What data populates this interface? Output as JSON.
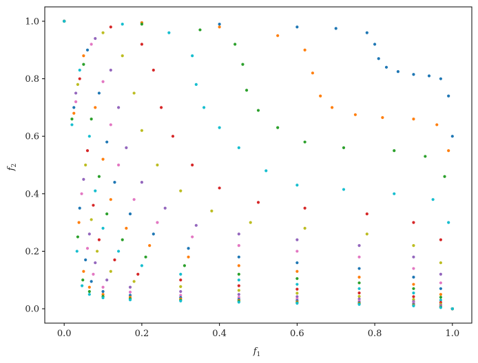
{
  "chart_data": {
    "type": "scatter",
    "title": "",
    "xlabel": "f",
    "xlabel_sub": "1",
    "ylabel": "f",
    "ylabel_sub": "2",
    "xlim": [
      -0.05,
      1.05
    ],
    "ylim": [
      -0.05,
      1.05
    ],
    "x_ticks": [
      0.0,
      0.2,
      0.4,
      0.6,
      0.8,
      1.0
    ],
    "x_tick_labels": [
      "0.0",
      "0.2",
      "0.4",
      "0.6",
      "0.8",
      "1.0"
    ],
    "y_ticks": [
      0.0,
      0.2,
      0.4,
      0.6,
      0.8,
      1.0
    ],
    "y_tick_labels": [
      "0.0",
      "0.2",
      "0.4",
      "0.6",
      "0.8",
      "1.0"
    ],
    "grid": false,
    "legend": "none",
    "marker": "dot",
    "colors": [
      "#1f77b4",
      "#ff7f0e",
      "#2ca02c",
      "#17becf",
      "#d62728",
      "#bcbd22",
      "#9467bd",
      "#e377c2"
    ],
    "series": [
      {
        "values": [
          [
            0.0,
            1.0
          ],
          [
            0.2,
            0.995
          ],
          [
            0.4,
            0.99
          ],
          [
            0.6,
            0.98
          ],
          [
            0.7,
            0.975
          ],
          [
            0.78,
            0.96
          ],
          [
            0.8,
            0.92
          ],
          [
            0.81,
            0.87
          ],
          [
            0.83,
            0.84
          ],
          [
            0.86,
            0.825
          ],
          [
            0.9,
            0.815
          ],
          [
            0.94,
            0.81
          ],
          [
            0.97,
            0.8
          ],
          [
            0.99,
            0.74
          ],
          [
            1.0,
            0.6
          ],
          [
            1.0,
            0.0
          ]
        ]
      },
      {
        "values": [
          [
            0.0,
            1.0
          ],
          [
            0.2,
            0.995
          ],
          [
            0.4,
            0.98
          ],
          [
            0.55,
            0.95
          ],
          [
            0.62,
            0.9
          ],
          [
            0.64,
            0.82
          ],
          [
            0.66,
            0.74
          ],
          [
            0.69,
            0.7
          ],
          [
            0.75,
            0.675
          ],
          [
            0.82,
            0.665
          ],
          [
            0.9,
            0.66
          ],
          [
            0.96,
            0.64
          ],
          [
            0.99,
            0.55
          ],
          [
            1.0,
            0.0
          ]
        ]
      },
      {
        "values": [
          [
            0.0,
            1.0
          ],
          [
            0.2,
            0.99
          ],
          [
            0.35,
            0.97
          ],
          [
            0.44,
            0.92
          ],
          [
            0.46,
            0.85
          ],
          [
            0.47,
            0.76
          ],
          [
            0.5,
            0.69
          ],
          [
            0.55,
            0.63
          ],
          [
            0.62,
            0.58
          ],
          [
            0.72,
            0.56
          ],
          [
            0.85,
            0.55
          ],
          [
            0.93,
            0.53
          ],
          [
            0.98,
            0.46
          ],
          [
            1.0,
            0.0
          ]
        ]
      },
      {
        "values": [
          [
            0.0,
            1.0
          ],
          [
            0.15,
            0.99
          ],
          [
            0.27,
            0.96
          ],
          [
            0.33,
            0.88
          ],
          [
            0.34,
            0.78
          ],
          [
            0.36,
            0.7
          ],
          [
            0.4,
            0.63
          ],
          [
            0.45,
            0.56
          ],
          [
            0.52,
            0.48
          ],
          [
            0.6,
            0.43
          ],
          [
            0.72,
            0.415
          ],
          [
            0.85,
            0.4
          ],
          [
            0.95,
            0.38
          ],
          [
            0.99,
            0.3
          ],
          [
            1.0,
            0.0
          ]
        ]
      },
      {
        "values": [
          [
            0.0,
            1.0
          ],
          [
            0.12,
            0.98
          ],
          [
            0.2,
            0.92
          ],
          [
            0.23,
            0.83
          ],
          [
            0.25,
            0.7
          ],
          [
            0.28,
            0.6
          ],
          [
            0.33,
            0.5
          ],
          [
            0.4,
            0.42
          ],
          [
            0.5,
            0.37
          ],
          [
            0.62,
            0.35
          ],
          [
            0.78,
            0.33
          ],
          [
            0.9,
            0.3
          ],
          [
            0.97,
            0.24
          ],
          [
            1.0,
            0.0
          ]
        ]
      },
      {
        "values": [
          [
            0.0,
            1.0
          ],
          [
            0.1,
            0.96
          ],
          [
            0.15,
            0.88
          ],
          [
            0.18,
            0.75
          ],
          [
            0.2,
            0.62
          ],
          [
            0.24,
            0.5
          ],
          [
            0.3,
            0.41
          ],
          [
            0.38,
            0.34
          ],
          [
            0.48,
            0.3
          ],
          [
            0.62,
            0.28
          ],
          [
            0.78,
            0.26
          ],
          [
            0.9,
            0.22
          ],
          [
            0.97,
            0.16
          ],
          [
            1.0,
            0.0
          ]
        ]
      },
      {
        "values": [
          [
            0.0,
            1.0
          ],
          [
            0.08,
            0.94
          ],
          [
            0.12,
            0.83
          ],
          [
            0.14,
            0.7
          ],
          [
            0.16,
            0.56
          ],
          [
            0.2,
            0.44
          ],
          [
            0.26,
            0.35
          ],
          [
            0.34,
            0.29
          ],
          [
            0.45,
            0.26
          ],
          [
            0.6,
            0.24
          ],
          [
            0.76,
            0.22
          ],
          [
            0.9,
            0.18
          ],
          [
            0.97,
            0.12
          ],
          [
            1.0,
            0.0
          ]
        ]
      },
      {
        "values": [
          [
            0.0,
            1.0
          ],
          [
            0.07,
            0.92
          ],
          [
            0.1,
            0.79
          ],
          [
            0.12,
            0.64
          ],
          [
            0.14,
            0.5
          ],
          [
            0.18,
            0.38
          ],
          [
            0.24,
            0.3
          ],
          [
            0.33,
            0.25
          ],
          [
            0.45,
            0.22
          ],
          [
            0.6,
            0.2
          ],
          [
            0.76,
            0.18
          ],
          [
            0.9,
            0.14
          ],
          [
            0.97,
            0.09
          ],
          [
            1.0,
            0.0
          ]
        ]
      },
      {
        "values": [
          [
            0.0,
            1.0
          ],
          [
            0.06,
            0.9
          ],
          [
            0.09,
            0.75
          ],
          [
            0.11,
            0.58
          ],
          [
            0.13,
            0.44
          ],
          [
            0.17,
            0.33
          ],
          [
            0.23,
            0.26
          ],
          [
            0.32,
            0.21
          ],
          [
            0.45,
            0.18
          ],
          [
            0.6,
            0.16
          ],
          [
            0.76,
            0.14
          ],
          [
            0.9,
            0.11
          ],
          [
            0.97,
            0.07
          ],
          [
            1.0,
            0.0
          ]
        ]
      },
      {
        "values": [
          [
            0.0,
            1.0
          ],
          [
            0.05,
            0.88
          ],
          [
            0.08,
            0.7
          ],
          [
            0.1,
            0.52
          ],
          [
            0.12,
            0.38
          ],
          [
            0.16,
            0.28
          ],
          [
            0.22,
            0.22
          ],
          [
            0.32,
            0.18
          ],
          [
            0.45,
            0.15
          ],
          [
            0.6,
            0.13
          ],
          [
            0.76,
            0.11
          ],
          [
            0.9,
            0.085
          ],
          [
            0.97,
            0.05
          ],
          [
            1.0,
            0.0
          ]
        ]
      },
      {
        "values": [
          [
            0.0,
            1.0
          ],
          [
            0.05,
            0.85
          ],
          [
            0.07,
            0.66
          ],
          [
            0.09,
            0.46
          ],
          [
            0.11,
            0.33
          ],
          [
            0.15,
            0.24
          ],
          [
            0.21,
            0.18
          ],
          [
            0.31,
            0.15
          ],
          [
            0.45,
            0.12
          ],
          [
            0.6,
            0.105
          ],
          [
            0.76,
            0.09
          ],
          [
            0.9,
            0.07
          ],
          [
            0.97,
            0.04
          ],
          [
            1.0,
            0.0
          ]
        ]
      },
      {
        "values": [
          [
            0.0,
            1.0
          ],
          [
            0.04,
            0.83
          ],
          [
            0.065,
            0.6
          ],
          [
            0.08,
            0.41
          ],
          [
            0.1,
            0.28
          ],
          [
            0.14,
            0.2
          ],
          [
            0.2,
            0.15
          ],
          [
            0.3,
            0.12
          ],
          [
            0.45,
            0.1
          ],
          [
            0.6,
            0.085
          ],
          [
            0.76,
            0.07
          ],
          [
            0.9,
            0.055
          ],
          [
            0.97,
            0.03
          ],
          [
            1.0,
            0.0
          ]
        ]
      },
      {
        "values": [
          [
            0.0,
            1.0
          ],
          [
            0.04,
            0.8
          ],
          [
            0.06,
            0.55
          ],
          [
            0.075,
            0.36
          ],
          [
            0.09,
            0.24
          ],
          [
            0.13,
            0.17
          ],
          [
            0.19,
            0.12
          ],
          [
            0.3,
            0.1
          ],
          [
            0.45,
            0.08
          ],
          [
            0.6,
            0.068
          ],
          [
            0.76,
            0.055
          ],
          [
            0.9,
            0.042
          ],
          [
            0.97,
            0.022
          ],
          [
            1.0,
            0.0
          ]
        ]
      },
      {
        "values": [
          [
            0.0,
            1.0
          ],
          [
            0.035,
            0.78
          ],
          [
            0.055,
            0.5
          ],
          [
            0.07,
            0.31
          ],
          [
            0.085,
            0.2
          ],
          [
            0.12,
            0.13
          ],
          [
            0.18,
            0.095
          ],
          [
            0.3,
            0.077
          ],
          [
            0.45,
            0.064
          ],
          [
            0.6,
            0.054
          ],
          [
            0.76,
            0.043
          ],
          [
            0.9,
            0.032
          ],
          [
            0.97,
            0.016
          ],
          [
            1.0,
            0.0
          ]
        ]
      },
      {
        "values": [
          [
            0.0,
            1.0
          ],
          [
            0.03,
            0.75
          ],
          [
            0.05,
            0.45
          ],
          [
            0.065,
            0.26
          ],
          [
            0.08,
            0.16
          ],
          [
            0.11,
            0.1
          ],
          [
            0.17,
            0.075
          ],
          [
            0.3,
            0.06
          ],
          [
            0.45,
            0.05
          ],
          [
            0.6,
            0.042
          ],
          [
            0.76,
            0.034
          ],
          [
            0.9,
            0.025
          ],
          [
            0.97,
            0.012
          ],
          [
            1.0,
            0.0
          ]
        ]
      },
      {
        "values": [
          [
            0.0,
            1.0
          ],
          [
            0.03,
            0.72
          ],
          [
            0.045,
            0.4
          ],
          [
            0.06,
            0.21
          ],
          [
            0.075,
            0.12
          ],
          [
            0.1,
            0.075
          ],
          [
            0.17,
            0.058
          ],
          [
            0.3,
            0.047
          ],
          [
            0.45,
            0.04
          ],
          [
            0.6,
            0.034
          ],
          [
            0.76,
            0.027
          ],
          [
            0.9,
            0.02
          ],
          [
            0.97,
            0.009
          ],
          [
            1.0,
            0.0
          ]
        ]
      },
      {
        "values": [
          [
            0.0,
            1.0
          ],
          [
            0.025,
            0.7
          ],
          [
            0.04,
            0.35
          ],
          [
            0.055,
            0.17
          ],
          [
            0.07,
            0.095
          ],
          [
            0.1,
            0.06
          ],
          [
            0.17,
            0.047
          ],
          [
            0.3,
            0.039
          ],
          [
            0.45,
            0.033
          ],
          [
            0.6,
            0.028
          ],
          [
            0.76,
            0.022
          ],
          [
            0.9,
            0.016
          ],
          [
            0.97,
            0.007
          ],
          [
            1.0,
            0.0
          ]
        ]
      },
      {
        "values": [
          [
            0.0,
            1.0
          ],
          [
            0.025,
            0.68
          ],
          [
            0.038,
            0.3
          ],
          [
            0.05,
            0.13
          ],
          [
            0.065,
            0.075
          ],
          [
            0.1,
            0.05
          ],
          [
            0.17,
            0.04
          ],
          [
            0.3,
            0.034
          ],
          [
            0.45,
            0.029
          ],
          [
            0.6,
            0.024
          ],
          [
            0.76,
            0.019
          ],
          [
            0.9,
            0.013
          ],
          [
            0.97,
            0.006
          ],
          [
            1.0,
            0.0
          ]
        ]
      },
      {
        "values": [
          [
            0.0,
            1.0
          ],
          [
            0.02,
            0.66
          ],
          [
            0.035,
            0.25
          ],
          [
            0.048,
            0.1
          ],
          [
            0.065,
            0.06
          ],
          [
            0.1,
            0.043
          ],
          [
            0.17,
            0.035
          ],
          [
            0.3,
            0.03
          ],
          [
            0.45,
            0.026
          ],
          [
            0.6,
            0.021
          ],
          [
            0.76,
            0.017
          ],
          [
            0.9,
            0.011
          ],
          [
            0.97,
            0.005
          ],
          [
            1.0,
            0.0
          ]
        ]
      },
      {
        "values": [
          [
            0.0,
            1.0
          ],
          [
            0.02,
            0.64
          ],
          [
            0.033,
            0.2
          ],
          [
            0.046,
            0.08
          ],
          [
            0.065,
            0.05
          ],
          [
            0.1,
            0.038
          ],
          [
            0.17,
            0.031
          ],
          [
            0.3,
            0.027
          ],
          [
            0.45,
            0.023
          ],
          [
            0.6,
            0.019
          ],
          [
            0.76,
            0.015
          ],
          [
            0.9,
            0.01
          ],
          [
            0.97,
            0.004
          ],
          [
            1.0,
            0.0
          ]
        ]
      }
    ]
  }
}
